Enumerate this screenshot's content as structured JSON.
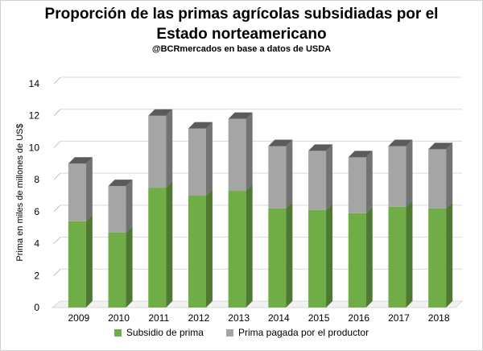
{
  "chart_data": {
    "type": "bar",
    "stacked": true,
    "title": "Proporción de las primas agrícolas subsidiadas por el",
    "title_line2": "Estado norteamericano",
    "subtitle": "@BCRmercados en base a datos de USDA",
    "ylabel": "Prima en miles de millones de US$",
    "xlabel": "",
    "ylim": [
      0,
      14
    ],
    "yticks": [
      "0",
      "2",
      "4",
      "6",
      "8",
      "10",
      "12",
      "14"
    ],
    "categories": [
      "2009",
      "2010",
      "2011",
      "2012",
      "2013",
      "2014",
      "2015",
      "2016",
      "2017",
      "2018"
    ],
    "series": [
      {
        "name": "Subsidio de prima",
        "color": "#70ad47",
        "values": [
          5.4,
          4.7,
          7.5,
          7.0,
          7.3,
          6.2,
          6.1,
          5.9,
          6.3,
          6.2
        ]
      },
      {
        "name": "Prima pagada por el productor",
        "color": "#a5a5a5",
        "values": [
          3.6,
          2.9,
          4.5,
          4.2,
          4.5,
          3.9,
          3.7,
          3.5,
          3.8,
          3.7
        ]
      }
    ],
    "legend_position": "bottom"
  }
}
